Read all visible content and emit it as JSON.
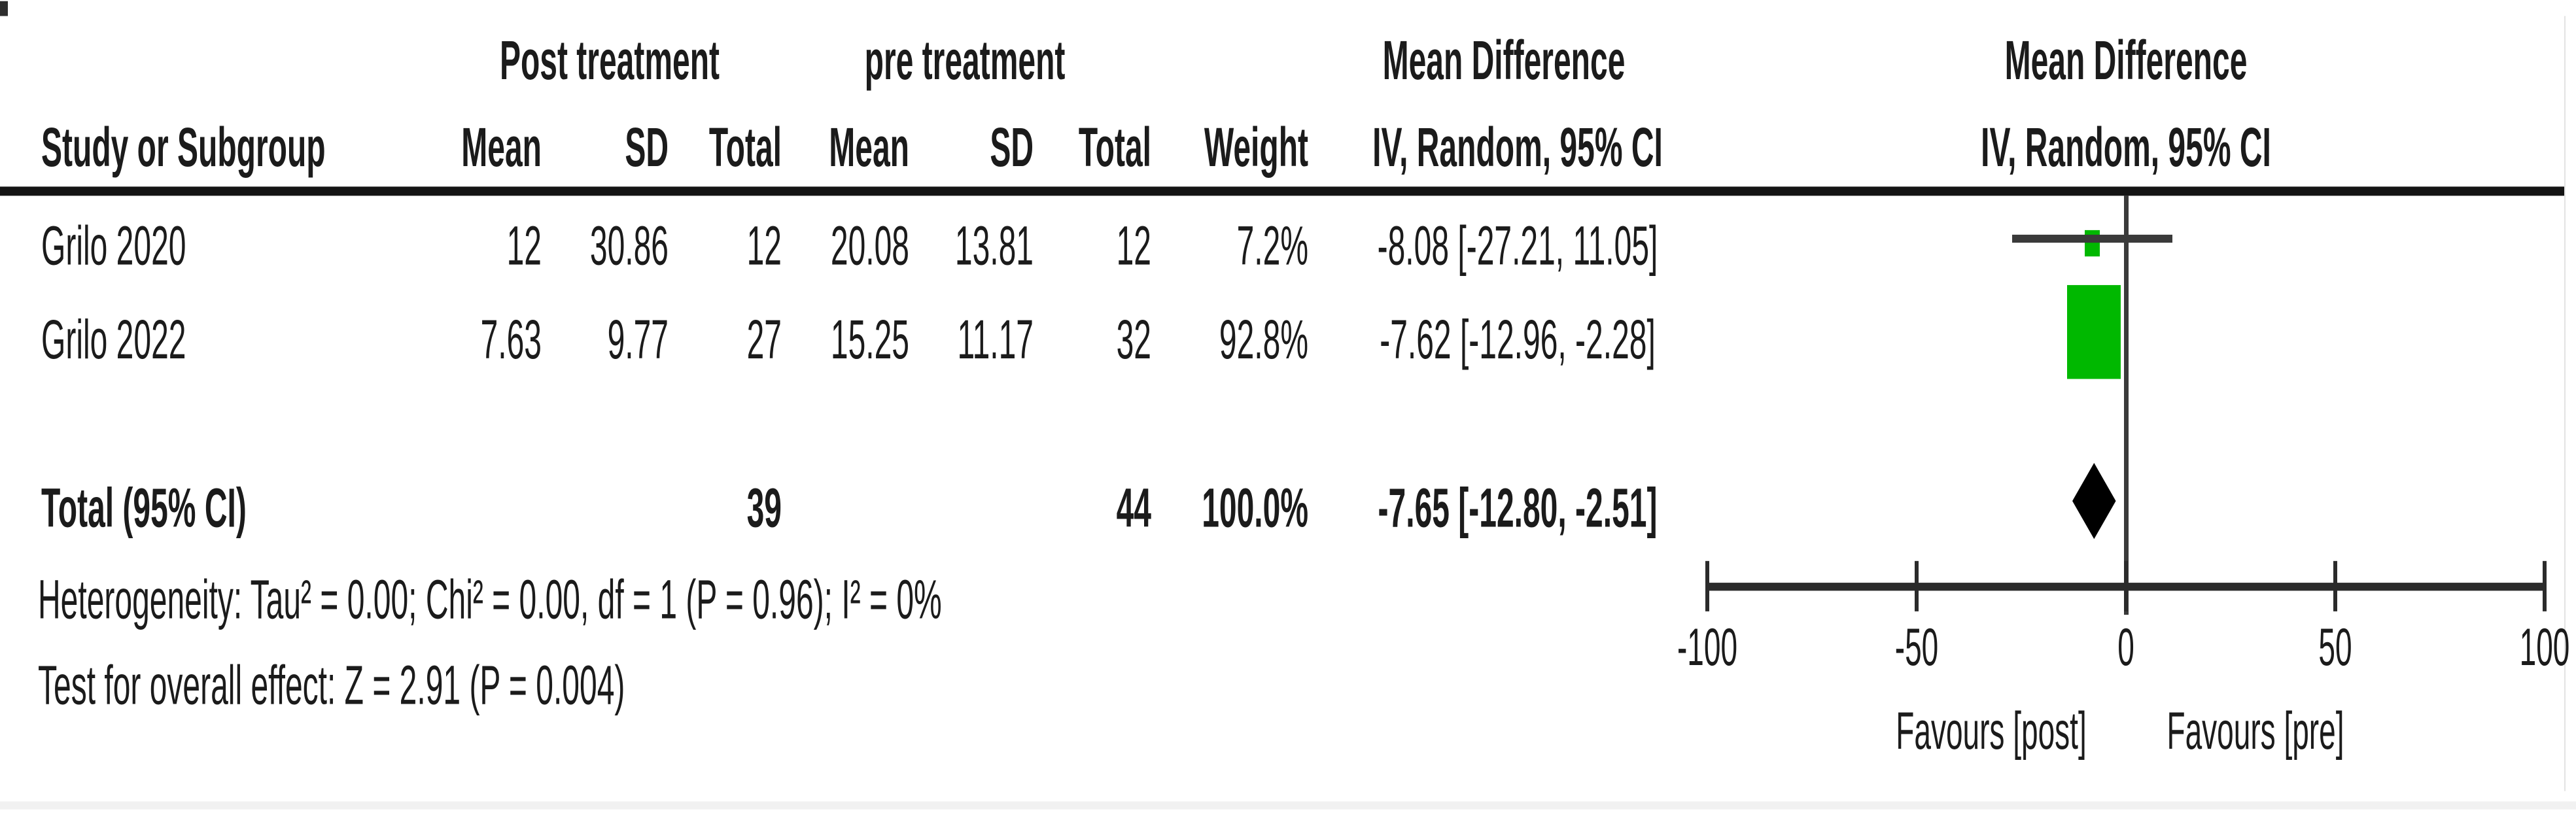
{
  "table": {
    "group_headers": {
      "post": "Post treatment",
      "pre": "pre treatment",
      "md_left": "Mean Difference",
      "md_right": "Mean Difference"
    },
    "columns": {
      "study": "Study or Subgroup",
      "mean_post": "Mean",
      "sd_post": "SD",
      "total_post": "Total",
      "mean_pre": "Mean",
      "sd_pre": "SD",
      "total_pre": "Total",
      "weight": "Weight",
      "ci_left": "IV, Random, 95% CI",
      "ci_right": "IV, Random, 95% CI"
    },
    "rows": [
      {
        "study": "Grilo 2020",
        "post_mean": "12",
        "post_sd": "30.86",
        "post_total": "12",
        "pre_mean": "20.08",
        "pre_sd": "13.81",
        "pre_total": "12",
        "weight": "7.2%",
        "ci_text": "-8.08 [-27.21, 11.05]"
      },
      {
        "study": "Grilo 2022",
        "post_mean": "7.63",
        "post_sd": "9.77",
        "post_total": "27",
        "pre_mean": "15.25",
        "pre_sd": "11.17",
        "pre_total": "32",
        "weight": "92.8%",
        "ci_text": "-7.62 [-12.96, -2.28]"
      }
    ],
    "total_row": {
      "label": "Total (95% CI)",
      "post_total": "39",
      "pre_total": "44",
      "weight": "100.0%",
      "ci_text": "-7.65 [-12.80, -2.51]"
    }
  },
  "footnotes": {
    "heterogeneity": "Heterogeneity: Tau² = 0.00; Chi² = 0.00, df = 1 (P = 0.96); I² = 0%",
    "overall_effect": "Test for overall effect: Z = 2.91 (P = 0.004)"
  },
  "axis_labels": {
    "tick_labels": [
      "-100",
      "-50",
      "0",
      "50",
      "100"
    ],
    "favours_left": "Favours [post]",
    "favours_right": "Favours [pre]"
  },
  "colors": {
    "marker_green": "#00b800",
    "line_gray": "#3a3a3a",
    "axis_black": "#2b2b2b",
    "rule_black": "#141414",
    "text": "#1b1b1b",
    "diamond": "#000000"
  },
  "chart_data": {
    "type": "forest",
    "effect_measure": "Mean Difference",
    "model": "IV, Random, 95% CI",
    "comparison_groups": [
      "Post treatment",
      "pre treatment"
    ],
    "studies": [
      {
        "name": "Grilo 2020",
        "post": {
          "mean": 12,
          "sd": 30.86,
          "total": 12
        },
        "pre": {
          "mean": 20.08,
          "sd": 13.81,
          "total": 12
        },
        "weight_pct": 7.2,
        "md": -8.08,
        "ci_low": -27.21,
        "ci_high": 11.05
      },
      {
        "name": "Grilo 2022",
        "post": {
          "mean": 7.63,
          "sd": 9.77,
          "total": 27
        },
        "pre": {
          "mean": 15.25,
          "sd": 11.17,
          "total": 32
        },
        "weight_pct": 92.8,
        "md": -7.62,
        "ci_low": -12.96,
        "ci_high": -2.28
      }
    ],
    "total": {
      "label": "Total (95% CI)",
      "post_total": 39,
      "pre_total": 44,
      "weight_pct": 100.0,
      "md": -7.65,
      "ci_low": -12.8,
      "ci_high": -2.51
    },
    "heterogeneity": {
      "tau2": 0.0,
      "chi2": 0.0,
      "df": 1,
      "p": 0.96,
      "i2_pct": 0
    },
    "overall_effect": {
      "z": 2.91,
      "p": 0.004
    },
    "axis": {
      "range": [
        -100,
        100
      ],
      "ticks": [
        -100,
        -50,
        0,
        50,
        100
      ],
      "favours_left": "Favours [post]",
      "favours_right": "Favours [pre]"
    }
  }
}
